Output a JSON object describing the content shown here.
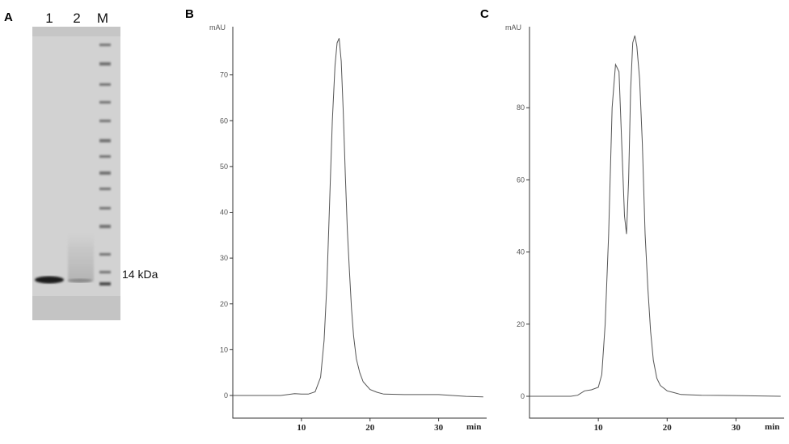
{
  "gel": {
    "panel": "A",
    "lanes": [
      "1",
      "2",
      "M"
    ],
    "marker_label": "14 kDa"
  },
  "chart_data": [
    {
      "panel": "B",
      "type": "line",
      "ylabel": "mAU",
      "xlabel": "min",
      "xlim": [
        0,
        37
      ],
      "ylim": [
        0,
        80
      ],
      "xticks": [
        10,
        20,
        30
      ],
      "yticks": [
        0,
        10,
        20,
        30,
        40,
        50,
        60,
        70
      ],
      "grid": false,
      "series": [
        {
          "x": [
            0,
            7,
            8,
            9,
            10,
            11,
            12,
            12.8,
            13.3,
            13.7,
            14.1,
            14.5,
            14.9,
            15.2,
            15.5,
            15.8,
            16.1,
            16.4,
            16.7,
            17.0,
            17.3,
            17.6,
            18.0,
            18.5,
            19.0,
            20.0,
            21.0,
            22.0,
            25.0,
            30.0,
            34.0,
            36.5
          ],
          "y": [
            0,
            0,
            0.2,
            0.4,
            0.3,
            0.3,
            0.8,
            4,
            12,
            24,
            42,
            60,
            72,
            77,
            78,
            73,
            62,
            48,
            36,
            27,
            19,
            13,
            8,
            5,
            3,
            1.3,
            0.7,
            0.3,
            0.2,
            0.2,
            -0.2,
            -0.3
          ]
        }
      ]
    },
    {
      "panel": "C",
      "type": "line",
      "ylabel": "mAU",
      "xlabel": "min",
      "xlim": [
        0,
        37
      ],
      "ylim": [
        0,
        100
      ],
      "xticks": [
        10,
        20,
        30
      ],
      "yticks": [
        0,
        20,
        40,
        60,
        80
      ],
      "grid": false,
      "series": [
        {
          "x": [
            0,
            6,
            7,
            8,
            9,
            10,
            10.5,
            11,
            11.5,
            12,
            12.5,
            13,
            13.4,
            13.8,
            14.1,
            14.4,
            14.7,
            15.0,
            15.3,
            15.6,
            16.0,
            16.4,
            16.8,
            17.2,
            17.6,
            18.0,
            18.5,
            19.0,
            20.0,
            21.0,
            22.0,
            25.0,
            30.0,
            36.5
          ],
          "y": [
            0,
            0,
            0.3,
            1.5,
            1.8,
            2.5,
            6,
            20,
            45,
            80,
            92,
            90,
            70,
            50,
            45,
            60,
            85,
            98,
            100,
            97,
            88,
            70,
            45,
            30,
            18,
            10,
            5,
            3,
            1.5,
            1,
            0.5,
            0.3,
            0.2,
            0
          ]
        }
      ]
    }
  ]
}
